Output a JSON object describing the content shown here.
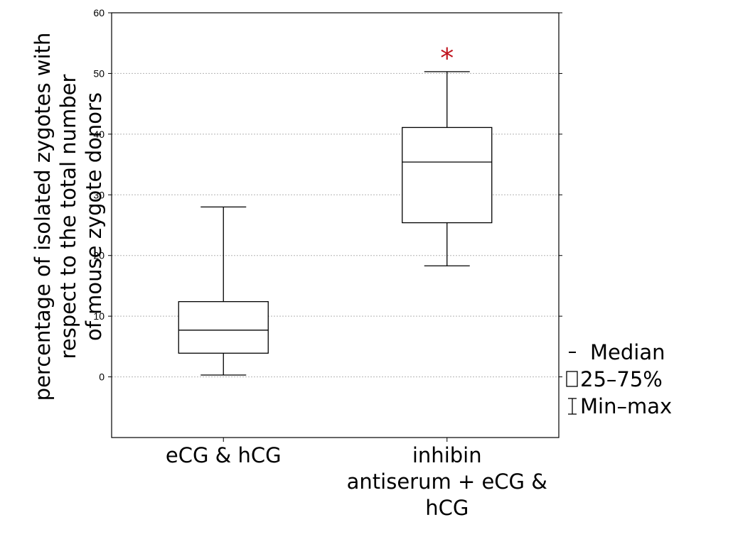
{
  "chart_data": {
    "type": "box",
    "ylabel_lines": [
      "percentage of isolated zygotes with",
      "respect to the total number",
      "of mouse zygote donors"
    ],
    "ylim": [
      -10,
      60
    ],
    "yticks": [
      0,
      10,
      20,
      30,
      40,
      50,
      60
    ],
    "grid": true,
    "series": [
      {
        "category_lines": [
          "eCG & hCG"
        ],
        "min": 0.3,
        "q1": 3.9,
        "median": 7.7,
        "q3": 12.4,
        "max": 28.0,
        "marker": ""
      },
      {
        "category_lines": [
          "inhibin",
          "antiserum + eCG &",
          "hCG"
        ],
        "min": 18.3,
        "q1": 25.4,
        "median": 35.4,
        "q3": 41.1,
        "max": 50.3,
        "marker": "*"
      }
    ],
    "legend": [
      {
        "symbol": "median-dash",
        "label": "Median"
      },
      {
        "symbol": "box",
        "label": "25–75%"
      },
      {
        "symbol": "whisker",
        "label": "Min–max"
      }
    ],
    "legend_placement": "bottom-right",
    "marker_color": "#c0141e"
  }
}
